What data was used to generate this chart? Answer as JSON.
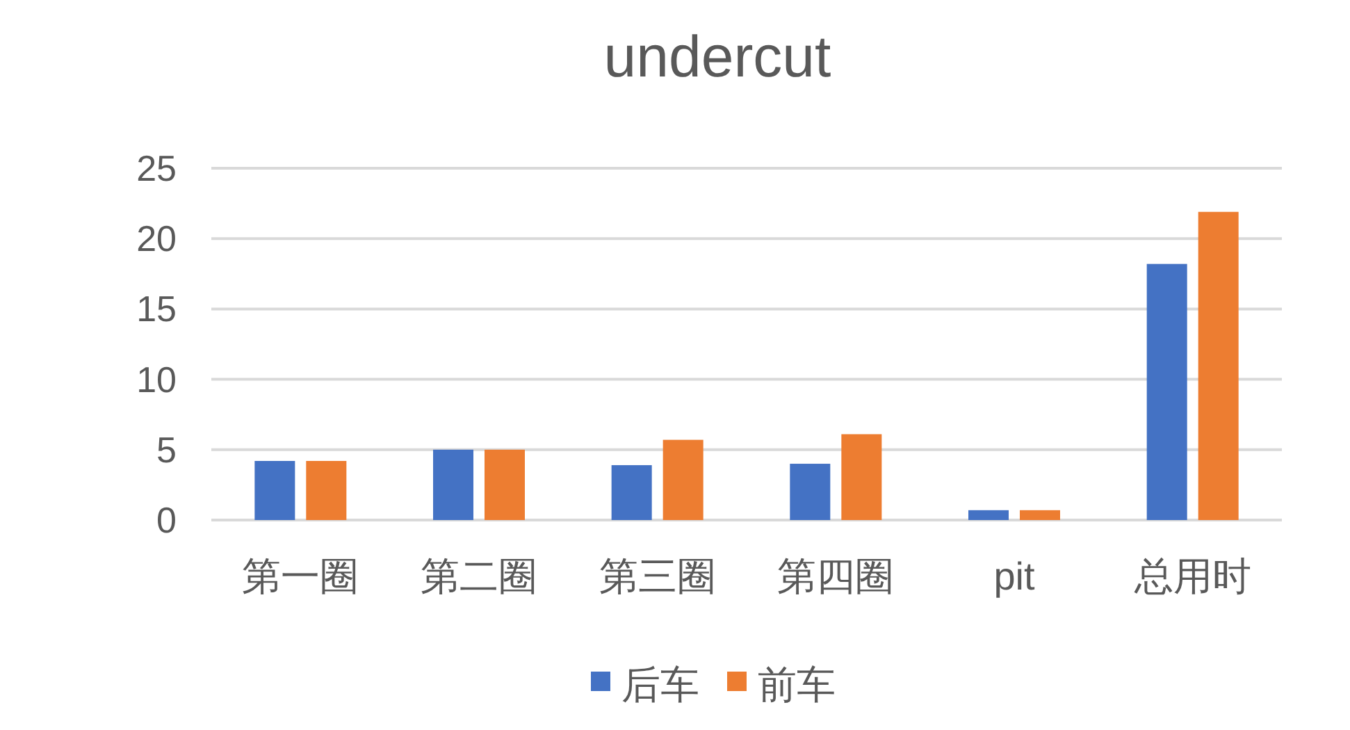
{
  "chart_data": {
    "type": "bar",
    "title": "undercut",
    "categories": [
      "第一圈",
      "第二圈",
      "第三圈",
      "第四圈",
      "pit",
      "总用时"
    ],
    "series": [
      {
        "name": "后车",
        "color": "#4472c4",
        "values": [
          4.2,
          5.0,
          3.9,
          4.0,
          0.7,
          18.2
        ]
      },
      {
        "name": "前车",
        "color": "#ed7d31",
        "values": [
          4.2,
          5.0,
          5.7,
          6.1,
          0.7,
          21.9
        ]
      }
    ],
    "ylim": [
      0,
      25
    ],
    "yticks": [
      0,
      5,
      10,
      15,
      20,
      25
    ],
    "grid": "y",
    "legend": "bottom"
  }
}
